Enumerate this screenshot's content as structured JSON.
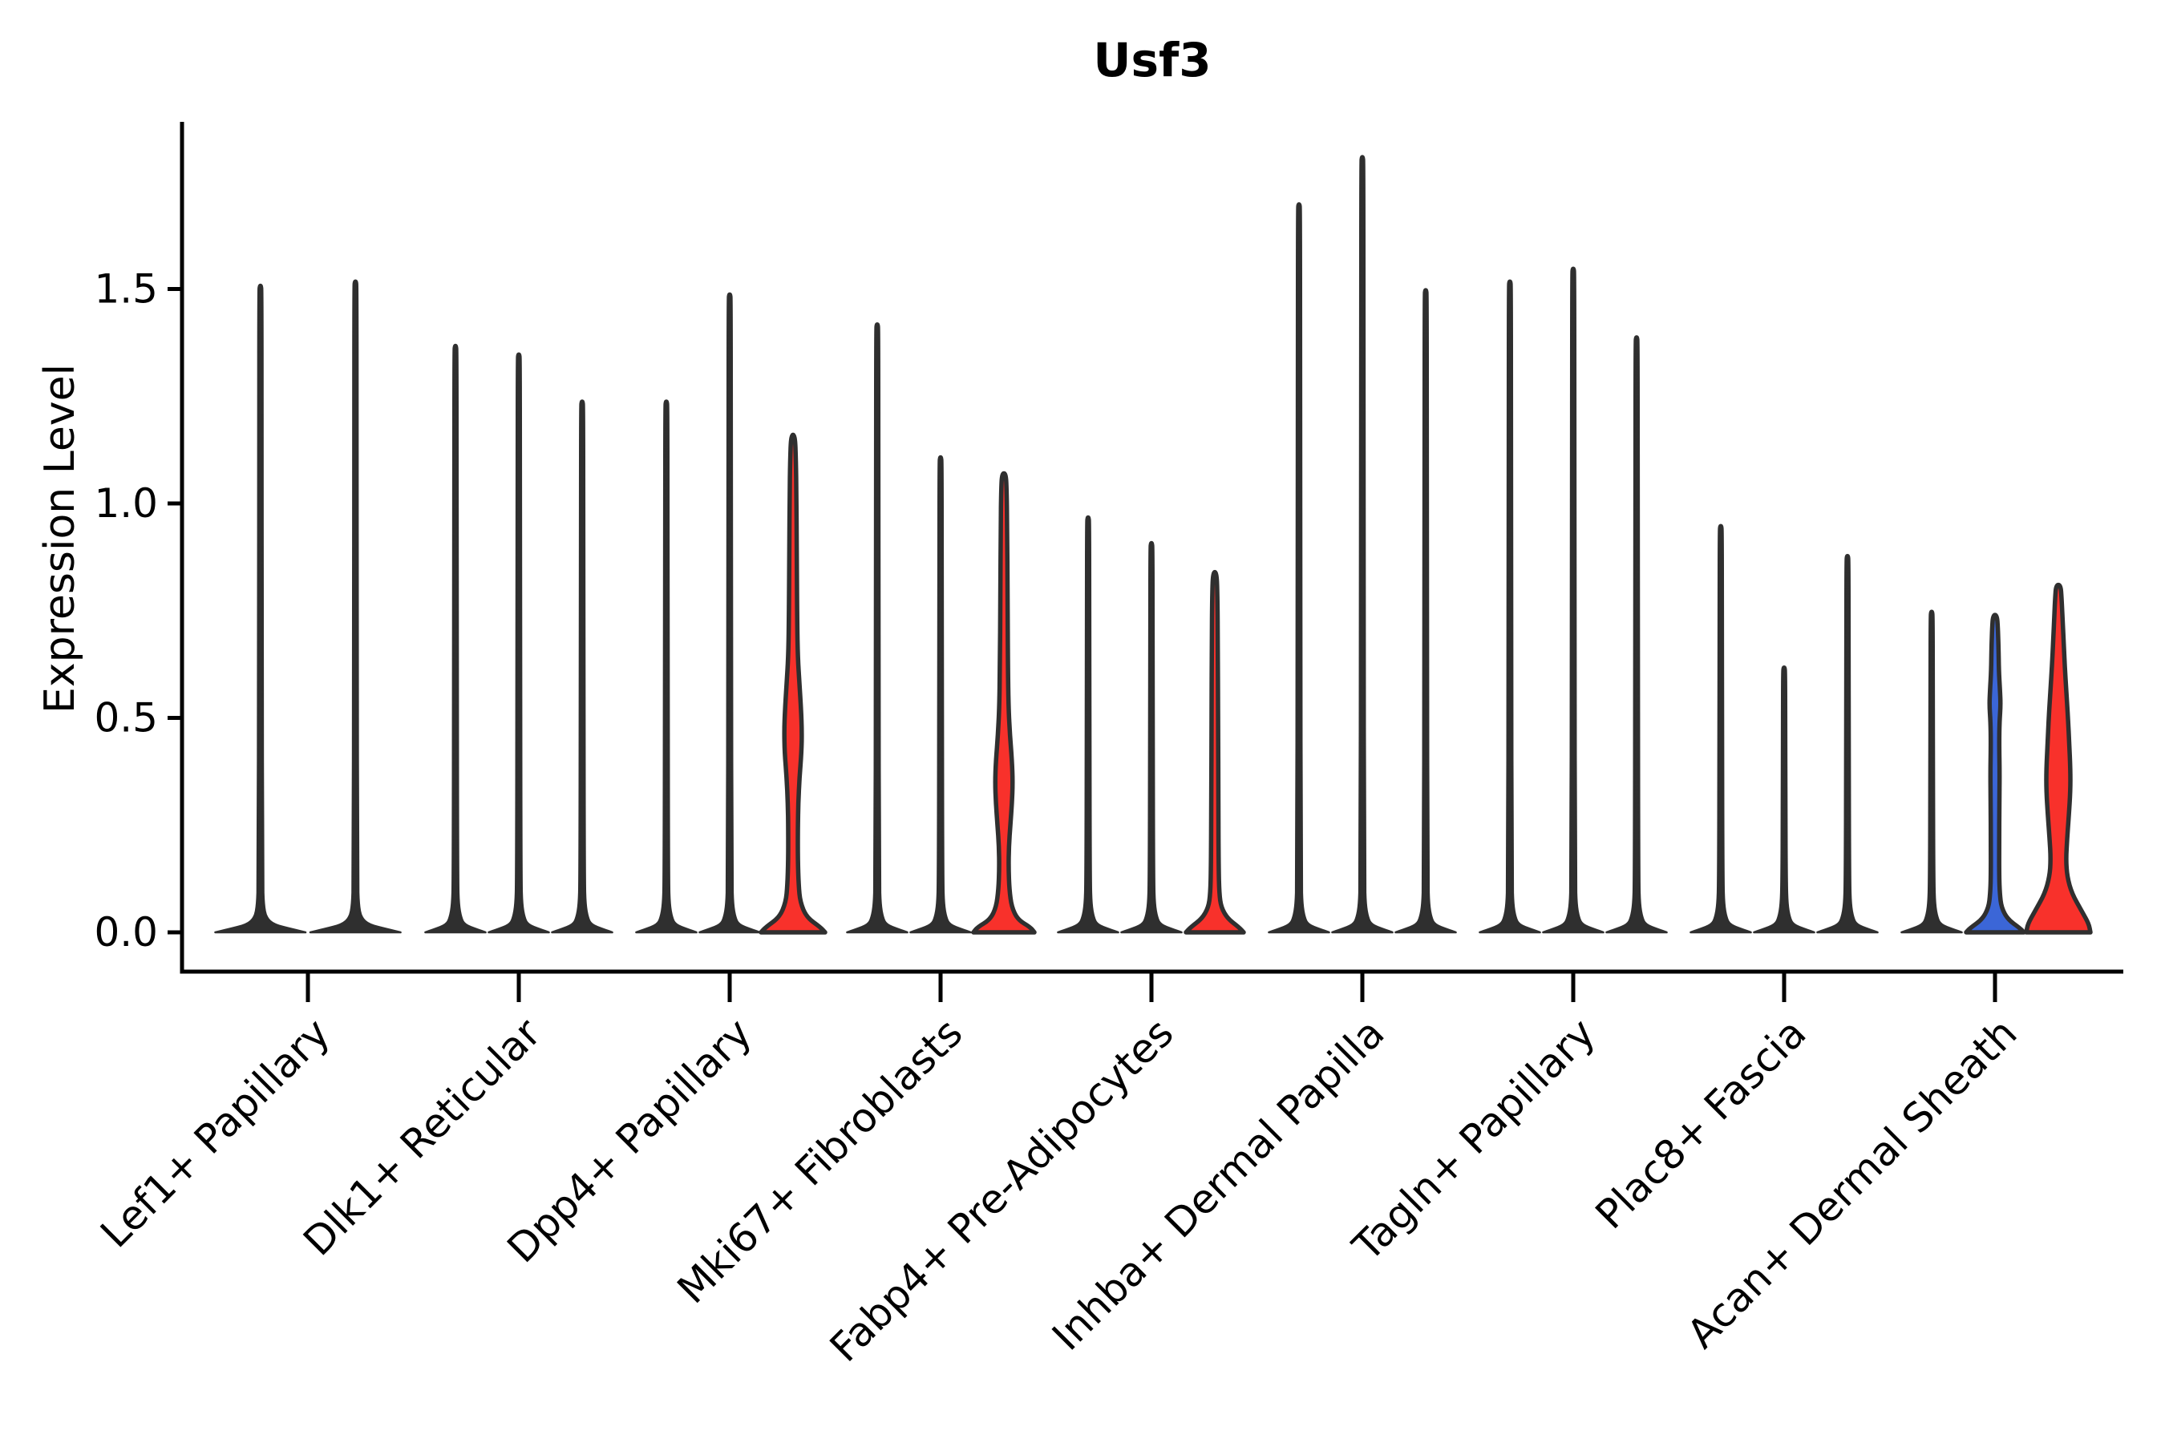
{
  "chart_data": {
    "type": "violin",
    "title": "Usf3",
    "ylabel": "Expression Level",
    "xlabel": "",
    "ylim": [
      0,
      1.9
    ],
    "grid": false,
    "legend": "none",
    "yticks": [
      {
        "value": 0.0,
        "label": "0.0"
      },
      {
        "value": 0.5,
        "label": "0.5"
      },
      {
        "value": 1.0,
        "label": "1.0"
      },
      {
        "value": 1.5,
        "label": "1.5"
      }
    ],
    "categories": [
      "Lef1+ Papillary",
      "Dlk1+ Reticular",
      "Dpp4+ Papillary",
      "Mki67+ Fibroblasts",
      "Fabp4+ Pre-Adipocytes",
      "Inhba+ Dermal Papilla",
      "Tagln+ Papillary",
      "Plac8+ Fascia",
      "Acan+ Dermal Sheath"
    ],
    "palette": {
      "dark": "#2F2F2F",
      "red": "#F8312B",
      "blue": "#3B66D7",
      "axis": "#000000",
      "background": "#FFFFFF"
    },
    "groups": [
      {
        "category": "Lef1+ Papillary",
        "violins": [
          {
            "max": 1.51,
            "color": "dark"
          },
          {
            "max": 1.52,
            "color": "dark"
          }
        ]
      },
      {
        "category": "Dlk1+ Reticular",
        "violins": [
          {
            "max": 1.37,
            "color": "dark"
          },
          {
            "max": 1.35,
            "color": "dark"
          },
          {
            "max": 1.24,
            "color": "dark"
          }
        ]
      },
      {
        "category": "Dpp4+ Papillary",
        "violins": [
          {
            "max": 1.24,
            "color": "dark"
          },
          {
            "max": 1.49,
            "color": "dark"
          },
          {
            "max": 1.16,
            "color": "red",
            "profile": [
              [
                0,
                40
              ],
              [
                0.012,
                34
              ],
              [
                0.035,
                17
              ],
              [
                0.07,
                9
              ],
              [
                0.11,
                7
              ],
              [
                0.17,
                6
              ],
              [
                0.24,
                6
              ],
              [
                0.3,
                6.5
              ],
              [
                0.36,
                8
              ],
              [
                0.42,
                10.5
              ],
              [
                0.47,
                11
              ],
              [
                0.52,
                10
              ],
              [
                0.58,
                8
              ],
              [
                0.64,
                6
              ],
              [
                0.72,
                5.2
              ],
              [
                0.9,
                4.6
              ],
              [
                1.02,
                4.2
              ],
              [
                1.1,
                3.6
              ],
              [
                1.16,
                2.4
              ]
            ]
          }
        ]
      },
      {
        "category": "Mki67+ Fibroblasts",
        "violins": [
          {
            "max": 1.42,
            "color": "dark"
          },
          {
            "max": 1.11,
            "color": "dark"
          },
          {
            "max": 1.07,
            "color": "red",
            "profile": [
              [
                0,
                38
              ],
              [
                0.012,
                33
              ],
              [
                0.03,
                17
              ],
              [
                0.06,
                9.5
              ],
              [
                0.1,
                6.8
              ],
              [
                0.15,
                5.8
              ],
              [
                0.2,
                6.2
              ],
              [
                0.25,
                8
              ],
              [
                0.3,
                10
              ],
              [
                0.35,
                11
              ],
              [
                0.4,
                10
              ],
              [
                0.46,
                7.5
              ],
              [
                0.52,
                5.8
              ],
              [
                0.62,
                5
              ],
              [
                0.78,
                4.5
              ],
              [
                0.95,
                4
              ],
              [
                1.03,
                3.4
              ],
              [
                1.07,
                2.4
              ]
            ]
          }
        ]
      },
      {
        "category": "Fabp4+ Pre-Adipocytes",
        "violins": [
          {
            "max": 0.97,
            "color": "dark"
          },
          {
            "max": 0.91,
            "color": "dark"
          },
          {
            "max": 0.84,
            "color": "red",
            "profile": [
              [
                0,
                36
              ],
              [
                0.012,
                30
              ],
              [
                0.032,
                16
              ],
              [
                0.058,
                8
              ],
              [
                0.09,
                5.6
              ],
              [
                0.15,
                4.8
              ],
              [
                0.3,
                4.4
              ],
              [
                0.5,
                4.1
              ],
              [
                0.68,
                3.8
              ],
              [
                0.78,
                3.3
              ],
              [
                0.84,
                2.3
              ]
            ]
          }
        ]
      },
      {
        "category": "Inhba+ Dermal Papilla",
        "violins": [
          {
            "max": 1.7,
            "color": "dark"
          },
          {
            "max": 1.81,
            "color": "dark"
          },
          {
            "max": 1.5,
            "color": "dark"
          }
        ]
      },
      {
        "category": "Tagln+ Papillary",
        "violins": [
          {
            "max": 1.52,
            "color": "dark"
          },
          {
            "max": 1.55,
            "color": "dark"
          },
          {
            "max": 1.39,
            "color": "dark"
          }
        ]
      },
      {
        "category": "Plac8+ Fascia",
        "violins": [
          {
            "max": 0.95,
            "color": "dark"
          },
          {
            "max": 0.62,
            "color": "dark"
          },
          {
            "max": 0.88,
            "color": "dark"
          }
        ]
      },
      {
        "category": "Acan+ Dermal Sheath",
        "violins": [
          {
            "max": 0.75,
            "color": "dark"
          },
          {
            "max": 0.74,
            "color": "blue",
            "profile": [
              [
                0,
                36
              ],
              [
                0.01,
                31
              ],
              [
                0.03,
                16
              ],
              [
                0.058,
                8
              ],
              [
                0.09,
                6
              ],
              [
                0.13,
                5.2
              ],
              [
                0.21,
                5.2
              ],
              [
                0.3,
                5.4
              ],
              [
                0.37,
                5.8
              ],
              [
                0.44,
                5.2
              ],
              [
                0.49,
                5.6
              ],
              [
                0.53,
                7
              ],
              [
                0.565,
                6.2
              ],
              [
                0.61,
                4.8
              ],
              [
                0.67,
                4.3
              ],
              [
                0.71,
                3.6
              ],
              [
                0.74,
                2.4
              ]
            ]
          },
          {
            "max": 0.81,
            "color": "red",
            "profile": [
              [
                0,
                40
              ],
              [
                0.02,
                38
              ],
              [
                0.05,
                29
              ],
              [
                0.09,
                17
              ],
              [
                0.13,
                11
              ],
              [
                0.17,
                9.5
              ],
              [
                0.22,
                11
              ],
              [
                0.27,
                13
              ],
              [
                0.33,
                15
              ],
              [
                0.38,
                15
              ],
              [
                0.44,
                13.5
              ],
              [
                0.5,
                12
              ],
              [
                0.56,
                10
              ],
              [
                0.62,
                8
              ],
              [
                0.68,
                6.5
              ],
              [
                0.74,
                5
              ],
              [
                0.78,
                4
              ],
              [
                0.81,
                2.8
              ]
            ]
          }
        ]
      }
    ]
  }
}
